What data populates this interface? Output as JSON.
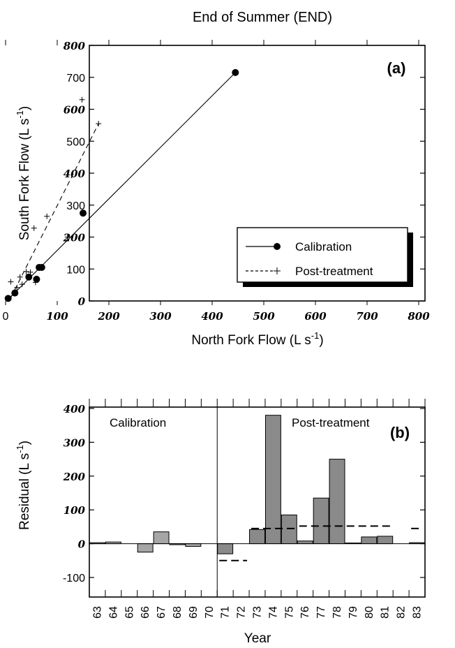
{
  "chart_data": [
    {
      "panel": "a",
      "type": "scatter",
      "title": "End of Summer (END)",
      "panel_label": "(a)",
      "xlabel": "North Fork Flow (L s",
      "xlabel_sup": "-1",
      "xlabel_end": ")",
      "ylabel": "South Fork Flow (L s",
      "ylabel_sup": "-1",
      "ylabel_end": ")",
      "xlim": [
        0,
        800
      ],
      "ylim": [
        0,
        800
      ],
      "x_ticks": [
        {
          "v": 0,
          "label": "0"
        },
        {
          "v": 100,
          "label": "100"
        },
        {
          "v": 200,
          "label": "200"
        },
        {
          "v": 300,
          "label": "300"
        },
        {
          "v": 400,
          "label": "400"
        },
        {
          "v": 500,
          "label": "500"
        },
        {
          "v": 600,
          "label": "600"
        },
        {
          "v": 700,
          "label": "700"
        },
        {
          "v": 800,
          "label": "800"
        }
      ],
      "y_ticks": [
        {
          "v": 0,
          "label": "0"
        },
        {
          "v": 100,
          "label": "100"
        },
        {
          "v": 200,
          "label": "200"
        },
        {
          "v": 300,
          "label": "300"
        },
        {
          "v": 400,
          "label": "400"
        },
        {
          "v": 500,
          "label": "500"
        },
        {
          "v": 600,
          "label": "600"
        },
        {
          "v": 700,
          "label": "700"
        },
        {
          "v": 800,
          "label": "800"
        }
      ],
      "grid": false,
      "legend_position": "lower-right",
      "series": [
        {
          "name": "Calibration",
          "marker": "circle",
          "line": "solid",
          "points": [
            [
              5,
              8
            ],
            [
              18,
              25
            ],
            [
              45,
              75
            ],
            [
              60,
              68
            ],
            [
              65,
              105
            ],
            [
              70,
              105
            ],
            [
              150,
              275
            ],
            [
              445,
              715
            ]
          ],
          "fit_line": [
            [
              5,
              5
            ],
            [
              445,
              715
            ]
          ]
        },
        {
          "name": "Post-treatment",
          "marker": "plus",
          "line": "dashed",
          "points": [
            [
              10,
              60
            ],
            [
              22,
              42
            ],
            [
              28,
              75
            ],
            [
              32,
              52
            ],
            [
              40,
              92
            ],
            [
              48,
              90
            ],
            [
              55,
              228
            ],
            [
              58,
              58
            ],
            [
              80,
              265
            ],
            [
              120,
              200
            ],
            [
              148,
              630
            ],
            [
              180,
              555
            ]
          ],
          "fit_line": [
            [
              10,
              10
            ],
            [
              180,
              555
            ]
          ]
        }
      ]
    },
    {
      "panel": "b",
      "type": "bar",
      "panel_label": "(b)",
      "xlabel": "Year",
      "ylabel": "Residual (L s",
      "ylabel_sup": "-1",
      "ylabel_end": ")",
      "ylim": [
        -130,
        430
      ],
      "y_ticks": [
        {
          "v": -100,
          "label": "-100"
        },
        {
          "v": 0,
          "label": "0"
        },
        {
          "v": 100,
          "label": "100"
        },
        {
          "v": 200,
          "label": "200"
        },
        {
          "v": 300,
          "label": "300"
        },
        {
          "v": 400,
          "label": "400"
        }
      ],
      "region_labels": [
        "Calibration",
        "Post-treatment"
      ],
      "divider_after_year": "70",
      "categories": [
        "63",
        "64",
        "65",
        "66",
        "67",
        "68",
        "69",
        "70",
        "71",
        "72",
        "73",
        "74",
        "75",
        "76",
        "77",
        "78",
        "79",
        "80",
        "81",
        "82",
        "83"
      ],
      "values": [
        3,
        5,
        0,
        -25,
        35,
        -3,
        -8,
        0,
        -30,
        0,
        42,
        380,
        85,
        8,
        135,
        250,
        2,
        20,
        22,
        0,
        3
      ],
      "mean_lines": [
        {
          "from": "71",
          "to": "72",
          "value": -50
        },
        {
          "from": "73",
          "to": "75",
          "value": 45
        },
        {
          "from": "76",
          "to": "81",
          "value": 52
        },
        {
          "from": "83",
          "to": "83",
          "value": 45
        }
      ]
    }
  ],
  "colors": {
    "ink": "#000000",
    "calibration_bar": "#a6a6a6",
    "post_treatment_bar": "#8a8a8a"
  }
}
